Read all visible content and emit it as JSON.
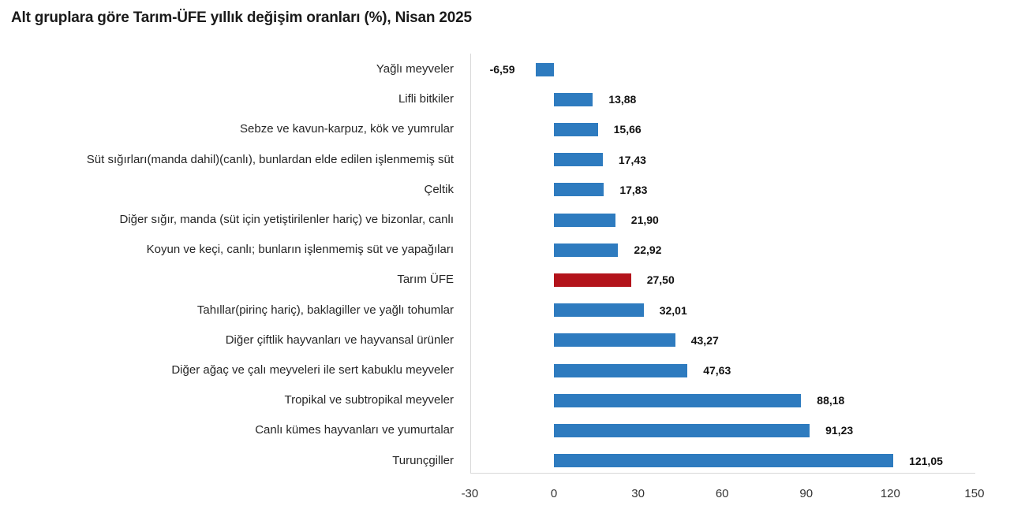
{
  "chart_data": {
    "type": "bar",
    "orientation": "horizontal",
    "title": "Alt gruplara göre Tarım-ÜFE yıllık değişim oranları (%), Nisan 2025",
    "xlabel": "",
    "ylabel": "",
    "xlim": [
      -30,
      150
    ],
    "xticks": [
      "-30",
      "0",
      "30",
      "60",
      "90",
      "120",
      "150"
    ],
    "grid": false,
    "legend": null,
    "categories": [
      "Yağlı meyveler",
      "Lifli bitkiler",
      "Sebze ve kavun-karpuz, kök ve yumrular",
      "Süt sığırları(manda dahil)(canlı), bunlardan elde edilen işlenmemiş süt",
      "Çeltik",
      "Diğer sığır, manda (süt için yetiştirilenler hariç) ve bizonlar, canlı",
      "Koyun ve keçi, canlı; bunların işlenmemiş süt ve yapağıları",
      "Tarım ÜFE",
      "Tahıllar(pirinç hariç), baklagiller ve yağlı tohumlar",
      "Diğer çiftlik hayvanları ve hayvansal ürünler",
      "Diğer ağaç ve çalı meyveleri ile sert kabuklu meyveler",
      "Tropikal ve subtropikal meyveler",
      "Canlı kümes hayvanları ve yumurtalar",
      "Turunçgiller"
    ],
    "values": [
      -6.59,
      13.88,
      15.66,
      17.43,
      17.83,
      21.9,
      22.92,
      27.5,
      32.01,
      43.27,
      47.63,
      88.18,
      91.23,
      121.05
    ],
    "labels": [
      "-6,59",
      "13,88",
      "15,66",
      "17,43",
      "17,83",
      "21,90",
      "22,92",
      "27,50",
      "32,01",
      "43,27",
      "47,63",
      "88,18",
      "91,23",
      "121,05"
    ],
    "highlight_index": 7,
    "colors": {
      "default": "#2e7bbf",
      "highlight": "#b3131b"
    }
  }
}
